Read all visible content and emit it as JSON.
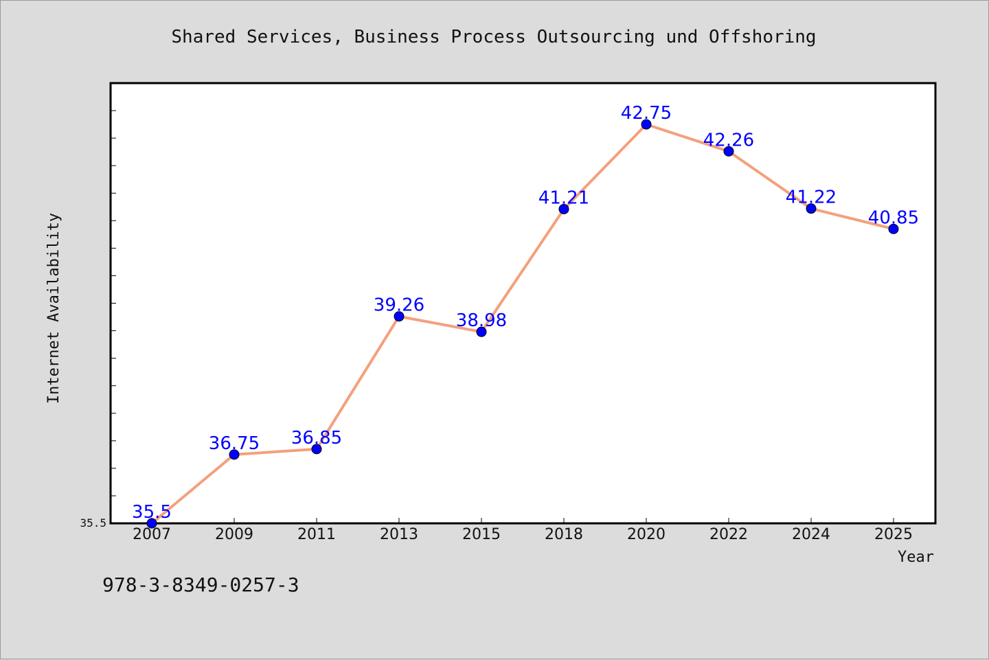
{
  "chart_data": {
    "type": "line",
    "title": "Shared Services, Business Process Outsourcing und Offshoring",
    "xlabel": "Year",
    "ylabel": "Internet Availability",
    "categories": [
      "2007",
      "2009",
      "2011",
      "2013",
      "2015",
      "2018",
      "2020",
      "2022",
      "2024",
      "2025"
    ],
    "series": [
      {
        "values": [
          35.5,
          36.75,
          36.85,
          39.26,
          38.98,
          41.21,
          42.75,
          42.26,
          41.22,
          40.85
        ],
        "labels": [
          "35.5",
          "36.75",
          "36.85",
          "39.26",
          "38.98",
          "41.21",
          "42.75",
          "42.26",
          "41.22",
          "40.85"
        ],
        "line_color": "#f4a07c",
        "marker_color": "#0000ff"
      }
    ],
    "ylim": [
      35.5,
      43.5
    ],
    "yticks_labeled": [
      "35.5"
    ],
    "ytick_minor_step": 0.5,
    "grid": false,
    "legend": "none"
  },
  "footer_text": "978-3-8349-0257-3"
}
